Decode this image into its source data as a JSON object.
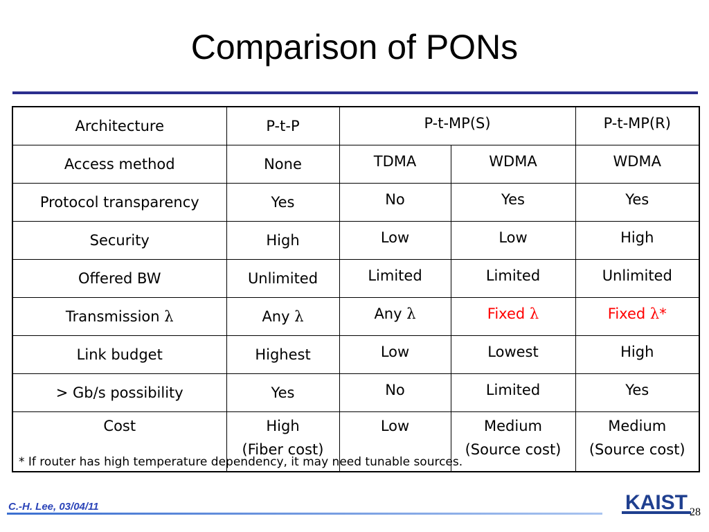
{
  "slide": {
    "title": "Comparison of PONs",
    "footnote": "* If router has high temperature dependency, it may need tunable sources.",
    "author": "C.-H. Lee, 03/04/11",
    "page_number": "28",
    "logo_text": "KAIST"
  },
  "table": {
    "header": {
      "label": "Architecture",
      "col_ptp": "P-t-P",
      "col_ptmp_s": "P-t-MP(S)",
      "col_ptmp_r": "P-t-MP(R)"
    },
    "rows": [
      {
        "label": "Access method",
        "ptp": "None",
        "s1": "TDMA",
        "s2": "WDMA",
        "r": "WDMA"
      },
      {
        "label": "Protocol transparency",
        "ptp": "Yes",
        "s1": "No",
        "s2": "Yes",
        "r": "Yes"
      },
      {
        "label": "Security",
        "ptp": "High",
        "s1": "Low",
        "s2": "Low",
        "r": "High"
      },
      {
        "label": "Offered BW",
        "ptp": "Unlimited",
        "s1": "Limited",
        "s2": "Limited",
        "r": "Unlimited"
      },
      {
        "label": "Transmission",
        "label_symbol": "λ",
        "ptp": "Any",
        "ptp_symbol": "λ",
        "s1": "Any",
        "s1_symbol": "λ",
        "s2": "Fixed",
        "s2_symbol": "λ",
        "r": "Fixed",
        "r_symbol": "λ",
        "r_suffix": "*"
      },
      {
        "label": "Link budget",
        "ptp": "Highest",
        "s1": "Low",
        "s2": "Lowest",
        "r": "High"
      },
      {
        "label": "> Gb/s possibility",
        "ptp": "Yes",
        "s1": "No",
        "s2": "Limited",
        "r": "Yes"
      },
      {
        "label": "Cost",
        "ptp": "High",
        "ptp_note": "(Fiber cost)",
        "s1": "Low",
        "s2": "Medium",
        "s2_note": "(Source cost)",
        "r": "Medium",
        "r_note": "(Source cost)"
      }
    ]
  },
  "colors": {
    "title_rule": "#2b2e8e",
    "highlight_text": "#ff0000",
    "author_text": "#2b44b8",
    "logo": "#1f3f8f"
  }
}
